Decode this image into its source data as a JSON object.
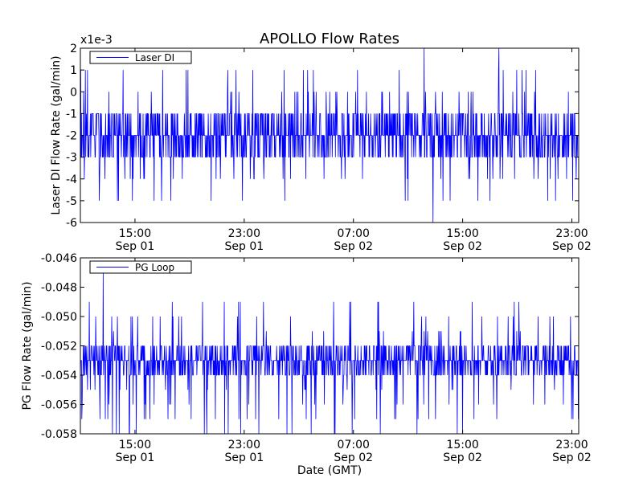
{
  "chart_data": {
    "type": "line",
    "title": "APOLLO Flow Rates",
    "shared_xlabel": "Date (GMT)",
    "series_color": "#0000ff",
    "x_range": [
      "2013-09-01T11:00",
      "2013-09-02T23:30"
    ],
    "x_ticks": [
      {
        "time": "2013-09-01T15:00",
        "label_time": "15:00",
        "label_date": "Sep 01"
      },
      {
        "time": "2013-09-01T23:00",
        "label_time": "23:00",
        "label_date": "Sep 01"
      },
      {
        "time": "2013-09-02T07:00",
        "label_time": "07:00",
        "label_date": "Sep 02"
      },
      {
        "time": "2013-09-02T15:00",
        "label_time": "15:00",
        "label_date": "Sep 02"
      },
      {
        "time": "2013-09-02T23:00",
        "label_time": "23:00",
        "label_date": "Sep 02"
      }
    ],
    "panels": [
      {
        "ylabel": "Laser DI Flow Rate (gal/min)",
        "offset_text": "x1e-3",
        "ylim": [
          -6,
          2
        ],
        "yticks": [
          2,
          1,
          0,
          -1,
          -2,
          -3,
          -4,
          -5,
          -6
        ],
        "ytick_labels": [
          "2",
          "1",
          "0",
          "-1",
          "-2",
          "-3",
          "-4",
          "-5",
          "-6"
        ],
        "legend": {
          "label": "Laser DI",
          "placement": "upper-left"
        },
        "grid": false,
        "typical_band": [
          -3,
          -1
        ],
        "occasional_range": [
          -5,
          1
        ],
        "extremes": [
          {
            "time": "2013-09-02T12:50",
            "value": -6
          },
          {
            "time": "2013-09-02T12:10",
            "value": 2
          },
          {
            "time": "2013-09-02T17:40",
            "value": 2
          }
        ]
      },
      {
        "ylabel": "PG Flow Rate (gal/min)",
        "ylim": [
          -0.058,
          -0.046
        ],
        "yticks": [
          -0.046,
          -0.048,
          -0.05,
          -0.052,
          -0.054,
          -0.056,
          -0.058
        ],
        "ytick_labels": [
          "-0.046",
          "-0.048",
          "-0.050",
          "-0.052",
          "-0.054",
          "-0.056",
          "-0.058"
        ],
        "legend": {
          "label": "PG Loop",
          "placement": "upper-left"
        },
        "grid": false,
        "typical_band": [
          -0.054,
          -0.052
        ],
        "occasional_range": [
          -0.058,
          -0.049
        ],
        "extremes": [
          {
            "time": "2013-09-01T12:40",
            "value": -0.047
          },
          {
            "time": "2013-09-01T13:50",
            "value": -0.058
          },
          {
            "time": "2013-09-02T02:30",
            "value": -0.058
          },
          {
            "time": "2013-09-02T05:40",
            "value": -0.058
          }
        ]
      }
    ]
  }
}
